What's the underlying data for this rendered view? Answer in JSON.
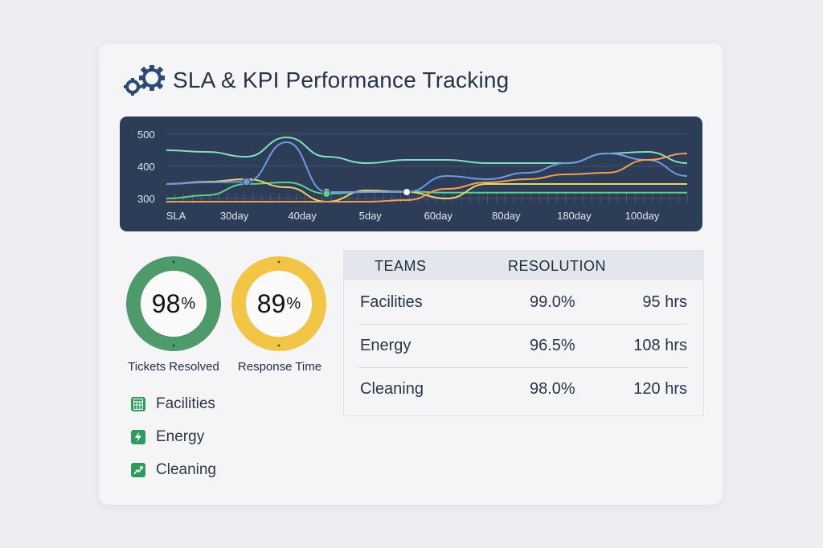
{
  "header": {
    "title": "SLA & KPI Performance Tracking",
    "icon": "gears-icon"
  },
  "chart_data": {
    "type": "line",
    "title": "",
    "y_ticks": [
      "500",
      "400",
      "300"
    ],
    "x_ticks": [
      "SLA",
      "30day",
      "40day",
      "5day",
      "60day",
      "80day",
      "180day",
      "100day"
    ],
    "ylim": [
      280,
      520
    ],
    "x": [
      0,
      1,
      2,
      3,
      4,
      5,
      6,
      7,
      8,
      9,
      10,
      11,
      12,
      13
    ],
    "series": [
      {
        "name": "teal",
        "color": "#7fe0c4",
        "values": [
          450,
          445,
          430,
          490,
          430,
          410,
          420,
          420,
          410,
          410,
          410,
          440,
          445,
          410
        ]
      },
      {
        "name": "green",
        "color": "#5fcf8e",
        "values": [
          300,
          310,
          345,
          350,
          315,
          320,
          322,
          318,
          318,
          318,
          318,
          318,
          318,
          318
        ]
      },
      {
        "name": "yellow",
        "color": "#e9d46a",
        "values": [
          345,
          352,
          360,
          335,
          290,
          325,
          320,
          300,
          345,
          345,
          345,
          345,
          345,
          345
        ]
      },
      {
        "name": "blue",
        "color": "#6e9ae3",
        "values": [
          345,
          350,
          352,
          475,
          320,
          320,
          320,
          370,
          360,
          380,
          410,
          440,
          420,
          370
        ]
      },
      {
        "name": "orange",
        "color": "#f0a050",
        "values": [
          290,
          290,
          290,
          290,
          290,
          290,
          295,
          330,
          350,
          360,
          375,
          380,
          420,
          440
        ]
      }
    ]
  },
  "gauges": [
    {
      "value": "98",
      "unit": "%",
      "label": "Tickets Resolved",
      "color": "#4f9a6b",
      "percent": 98
    },
    {
      "value": "89",
      "unit": "%",
      "label": "Response Time",
      "color": "#f2c546",
      "percent": 89
    }
  ],
  "legend": [
    {
      "label": "Facilities",
      "icon": "grid-icon"
    },
    {
      "label": "Energy",
      "icon": "lightning-icon"
    },
    {
      "label": "Cleaning",
      "icon": "trend-icon"
    }
  ],
  "table": {
    "headers": [
      "TEAMS",
      "RESOLUTION"
    ],
    "rows": [
      {
        "team": "Facilities",
        "pct": "99.0%",
        "hrs": "95 hrs"
      },
      {
        "team": "Energy",
        "pct": "96.5%",
        "hrs": "108 hrs"
      },
      {
        "team": "Cleaning",
        "pct": "98.0%",
        "hrs": "120 hrs"
      }
    ]
  }
}
